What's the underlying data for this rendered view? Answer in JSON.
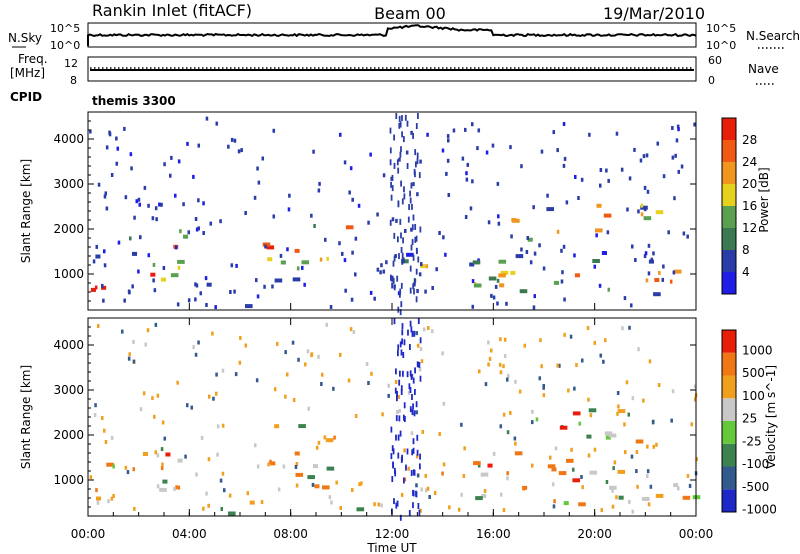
{
  "header": {
    "title": "Rankin Inlet (fitACF)",
    "beam": "Beam 00",
    "date": "19/Mar/2010"
  },
  "noise_panel": {
    "left_label": "N.Sky",
    "right_label": "N.Search",
    "left_ticks": [
      "10^5",
      "10^0"
    ],
    "right_ticks": [
      "10^5",
      "10^0"
    ]
  },
  "freq_panel": {
    "left_label_top": "Freq.",
    "left_label_bottom": "[MHz]",
    "left_ticks": [
      "12",
      "8"
    ],
    "right_label": "Nave",
    "right_ticks": [
      "60",
      "0"
    ]
  },
  "cpid": {
    "label": "CPID",
    "value": "themis 3300"
  },
  "colors": {
    "power_scale": [
      "#1e1ee6",
      "#2a3ca8",
      "#3c7850",
      "#5aa050",
      "#e6d21e",
      "#f0961e",
      "#f05a14",
      "#e61e0a"
    ],
    "velocity_scale": [
      "#1e28c8",
      "#325a8c",
      "#3c8250",
      "#64c83c",
      "#c8c8c8",
      "#f0a01e",
      "#f07814",
      "#e61e0a"
    ]
  },
  "chart_data": [
    {
      "type": "heatmap",
      "name": "power",
      "ylabel": "Slant Range [km]",
      "yticks": [
        "1000",
        "2000",
        "3000",
        "4000"
      ],
      "ylim": [
        200,
        4600
      ],
      "colorbar_label": "Power [dB]",
      "colorbar_ticks": [
        "4",
        "8",
        "12",
        "16",
        "20",
        "24",
        "28"
      ],
      "clim": [
        0,
        32
      ]
    },
    {
      "type": "heatmap",
      "name": "velocity",
      "ylabel": "Slant Range [km]",
      "yticks": [
        "1000",
        "2000",
        "3000",
        "4000"
      ],
      "ylim": [
        200,
        4600
      ],
      "xlabel": "Time UT",
      "xticks": [
        "00:00",
        "04:00",
        "08:00",
        "12:00",
        "16:00",
        "20:00",
        "00:00"
      ],
      "xlim_hours": [
        0,
        24
      ],
      "colorbar_label": "Velocity [m s^-1]",
      "colorbar_ticks": [
        "1000",
        "500",
        "100",
        "25",
        "-25",
        "-100",
        "-500",
        "-1000"
      ]
    }
  ]
}
